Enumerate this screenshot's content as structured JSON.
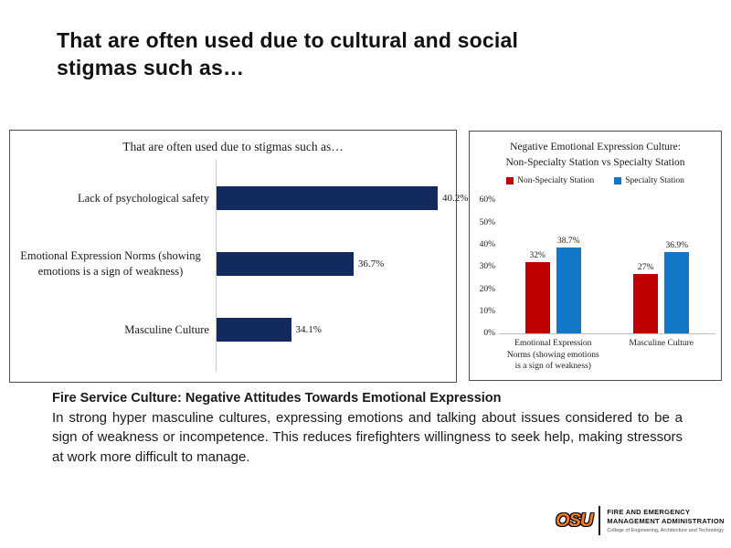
{
  "slide": {
    "title_lines": [
      "That are often used due to cultural and social",
      "stigmas such as…"
    ]
  },
  "chart_data": [
    {
      "type": "bar",
      "orientation": "horizontal",
      "title": "That are often used due to stigmas such as…",
      "categories": [
        "Lack of psychological safety",
        "Emotional Expression Norms (showing emotions is a sign of weakness)",
        "Masculine Culture"
      ],
      "values": [
        40.2,
        36.7,
        34.1
      ],
      "data_labels": [
        "40.2%",
        "36.7%",
        "34.1%"
      ],
      "bar_color": "#132A5E",
      "xlim": [
        31,
        41
      ],
      "grid": false,
      "legend": "none"
    },
    {
      "type": "bar",
      "orientation": "vertical",
      "title": "Negative Emotional Expression Culture: Non-Specialty Station vs Specialty Station",
      "title_lines": [
        "Negative Emotional Expression Culture:",
        "Non-Specialty Station vs Specialty Station"
      ],
      "categories": [
        "Emotional Expression Norms (showing emotions is a sign of weakness)",
        "Masculine Culture"
      ],
      "series": [
        {
          "name": "Non-Specialty Station",
          "color": "#C00000",
          "values": [
            32,
            27
          ],
          "data_labels": [
            "32%",
            "27%"
          ]
        },
        {
          "name": "Specialty Station",
          "color": "#1277C8",
          "values": [
            38.7,
            36.9
          ],
          "data_labels": [
            "38.7%",
            "36.9%"
          ]
        }
      ],
      "ylim": [
        0,
        60
      ],
      "ytick_labels": [
        "60%",
        "50%",
        "40%",
        "30%",
        "20%",
        "10%",
        "0%"
      ],
      "legend_position": "top",
      "grid": false
    }
  ],
  "body": {
    "heading": "Fire Service Culture: Negative Attitudes Towards Emotional Expression",
    "text": "In strong hyper masculine cultures, expressing emotions and talking about issues considered to be a sign of weakness or incompetence. This reduces firefighters willingness to seek help, making stressors at work more difficult to manage."
  },
  "footer": {
    "logo_text": "OSU",
    "org_line1": "FIRE AND EMERGENCY",
    "org_line2": "MANAGEMENT ADMINISTRATION",
    "college": "College of Engineering, Architecture and Technology",
    "brand_orange": "#F47B20"
  }
}
